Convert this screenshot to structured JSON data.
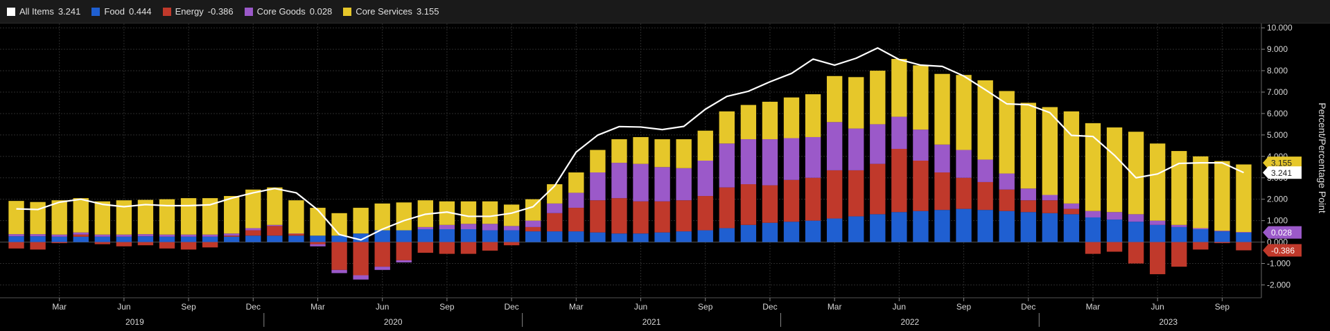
{
  "legend": {
    "items": [
      {
        "name": "All Items",
        "value": "3.241",
        "color": "#ffffff"
      },
      {
        "name": "Food",
        "value": "0.444",
        "color": "#1f5fd1"
      },
      {
        "name": "Energy",
        "value": "-0.386",
        "color": "#c0392b"
      },
      {
        "name": "Core Goods",
        "value": "0.028",
        "color": "#9b59c9"
      },
      {
        "name": "Core Services",
        "value": "3.155",
        "color": "#e6c72a"
      }
    ]
  },
  "chart_data": {
    "type": "bar",
    "stacked": true,
    "ylabel": "Percent/Percentage Point",
    "ylim": [
      -2.6,
      10.2
    ],
    "yticks": [
      10,
      9,
      8,
      7,
      6,
      5,
      4,
      3,
      2,
      1,
      0,
      -1,
      -2
    ],
    "ytick_labels": [
      "10.000",
      "9.000",
      "8.000",
      "7.000",
      "6.000",
      "5.000",
      "4.000",
      "3.000",
      "2.000",
      "1.000",
      "0.000",
      "-1.000",
      "-2.000"
    ],
    "month_labels": [
      {
        "label": "Mar",
        "index": 2
      },
      {
        "label": "Jun",
        "index": 5
      },
      {
        "label": "Sep",
        "index": 8
      },
      {
        "label": "Dec",
        "index": 11
      },
      {
        "label": "Mar",
        "index": 14
      },
      {
        "label": "Jun",
        "index": 17
      },
      {
        "label": "Sep",
        "index": 20
      },
      {
        "label": "Dec",
        "index": 23
      },
      {
        "label": "Mar",
        "index": 26
      },
      {
        "label": "Jun",
        "index": 29
      },
      {
        "label": "Sep",
        "index": 32
      },
      {
        "label": "Dec",
        "index": 35
      },
      {
        "label": "Mar",
        "index": 38
      },
      {
        "label": "Jun",
        "index": 41
      },
      {
        "label": "Sep",
        "index": 44
      },
      {
        "label": "Dec",
        "index": 47
      },
      {
        "label": "Mar",
        "index": 50
      },
      {
        "label": "Jun",
        "index": 53
      },
      {
        "label": "Sep",
        "index": 56
      }
    ],
    "year_labels": [
      {
        "label": "2019",
        "index": 5.5
      },
      {
        "label": "2020",
        "index": 17.5
      },
      {
        "label": "2021",
        "index": 29.5
      },
      {
        "label": "2022",
        "index": 41.5
      },
      {
        "label": "2023",
        "index": 53.5
      }
    ],
    "year_dividers": [
      11.5,
      23.5,
      35.5,
      47.5
    ],
    "n_periods": 58,
    "series": [
      {
        "name": "Food",
        "color": "#1f5fd1",
        "values": [
          0.27,
          0.27,
          0.25,
          0.25,
          0.25,
          0.25,
          0.27,
          0.25,
          0.25,
          0.25,
          0.25,
          0.3,
          0.3,
          0.3,
          0.3,
          0.3,
          0.4,
          0.55,
          0.55,
          0.6,
          0.6,
          0.6,
          0.55,
          0.55,
          0.5,
          0.5,
          0.5,
          0.45,
          0.4,
          0.4,
          0.45,
          0.5,
          0.55,
          0.65,
          0.8,
          0.9,
          0.95,
          1.0,
          1.1,
          1.2,
          1.3,
          1.4,
          1.45,
          1.5,
          1.55,
          1.5,
          1.45,
          1.4,
          1.35,
          1.3,
          1.15,
          1.05,
          0.95,
          0.8,
          0.7,
          0.6,
          0.5,
          0.44
        ]
      },
      {
        "name": "Energy",
        "color": "#c0392b",
        "values": [
          -0.3,
          -0.35,
          -0.05,
          0.1,
          -0.1,
          -0.2,
          -0.15,
          -0.3,
          -0.35,
          -0.25,
          0.05,
          0.25,
          0.45,
          0.1,
          -0.1,
          -1.3,
          -1.55,
          -1.15,
          -0.85,
          -0.5,
          -0.55,
          -0.55,
          -0.4,
          -0.15,
          0.2,
          0.85,
          1.1,
          1.5,
          1.65,
          1.5,
          1.45,
          1.45,
          1.6,
          1.9,
          1.9,
          1.75,
          1.95,
          2.0,
          2.25,
          2.15,
          2.35,
          2.95,
          2.35,
          1.75,
          1.45,
          1.3,
          1.0,
          0.55,
          0.6,
          0.25,
          -0.55,
          -0.45,
          -1.0,
          -1.5,
          -1.15,
          -0.35,
          -0.05,
          -0.386
        ]
      },
      {
        "name": "Core Goods",
        "color": "#9b59c9",
        "values": [
          0.1,
          0.1,
          0.1,
          0.1,
          0.1,
          0.1,
          0.1,
          0.1,
          0.1,
          0.1,
          0.1,
          0.1,
          0.05,
          0.0,
          -0.1,
          -0.15,
          -0.2,
          -0.15,
          -0.1,
          0.1,
          0.2,
          0.25,
          0.3,
          0.2,
          0.3,
          0.45,
          0.7,
          1.3,
          1.65,
          1.75,
          1.6,
          1.5,
          1.65,
          2.05,
          2.1,
          2.15,
          1.95,
          1.9,
          2.25,
          1.95,
          1.85,
          1.5,
          1.45,
          1.3,
          1.3,
          1.05,
          0.75,
          0.55,
          0.25,
          0.25,
          0.3,
          0.35,
          0.35,
          0.2,
          0.1,
          0.05,
          0.03,
          0.028
        ]
      },
      {
        "name": "Core Services",
        "color": "#e6c72a",
        "values": [
          1.55,
          1.5,
          1.6,
          1.6,
          1.55,
          1.6,
          1.6,
          1.65,
          1.7,
          1.7,
          1.75,
          1.8,
          1.75,
          1.55,
          1.3,
          1.05,
          1.2,
          1.25,
          1.3,
          1.25,
          1.1,
          1.05,
          1.05,
          1.0,
          1.0,
          0.9,
          0.95,
          1.05,
          1.1,
          1.25,
          1.3,
          1.35,
          1.4,
          1.5,
          1.6,
          1.75,
          1.9,
          2.0,
          2.15,
          2.4,
          2.5,
          2.7,
          3.0,
          3.3,
          3.5,
          3.7,
          3.85,
          4.0,
          4.1,
          4.3,
          4.1,
          3.95,
          3.85,
          3.6,
          3.45,
          3.35,
          3.25,
          3.155
        ]
      },
      {
        "name": "All Items",
        "color": "#ffffff",
        "type": "line",
        "values": [
          1.55,
          1.52,
          1.86,
          2.0,
          1.76,
          1.65,
          1.75,
          1.7,
          1.7,
          1.74,
          2.05,
          2.3,
          2.5,
          2.3,
          1.5,
          0.35,
          0.1,
          0.6,
          1.0,
          1.3,
          1.4,
          1.2,
          1.2,
          1.35,
          1.65,
          2.62,
          4.2,
          4.99,
          5.39,
          5.37,
          5.25,
          5.4,
          6.2,
          6.8,
          7.04,
          7.48,
          7.87,
          8.54,
          8.26,
          8.58,
          9.06,
          8.52,
          8.26,
          8.2,
          7.75,
          7.11,
          6.45,
          6.41,
          6.04,
          4.98,
          4.93,
          4.05,
          3.0,
          3.18,
          3.67,
          3.7,
          3.7,
          3.241
        ]
      }
    ],
    "end_labels": [
      {
        "series": "Core Services",
        "text": "3.155"
      },
      {
        "series": "All Items",
        "text": "3.241"
      },
      {
        "series": "Core Goods",
        "text": "0.028"
      },
      {
        "series": "Energy",
        "text": "-0.386"
      }
    ],
    "grid": true
  }
}
